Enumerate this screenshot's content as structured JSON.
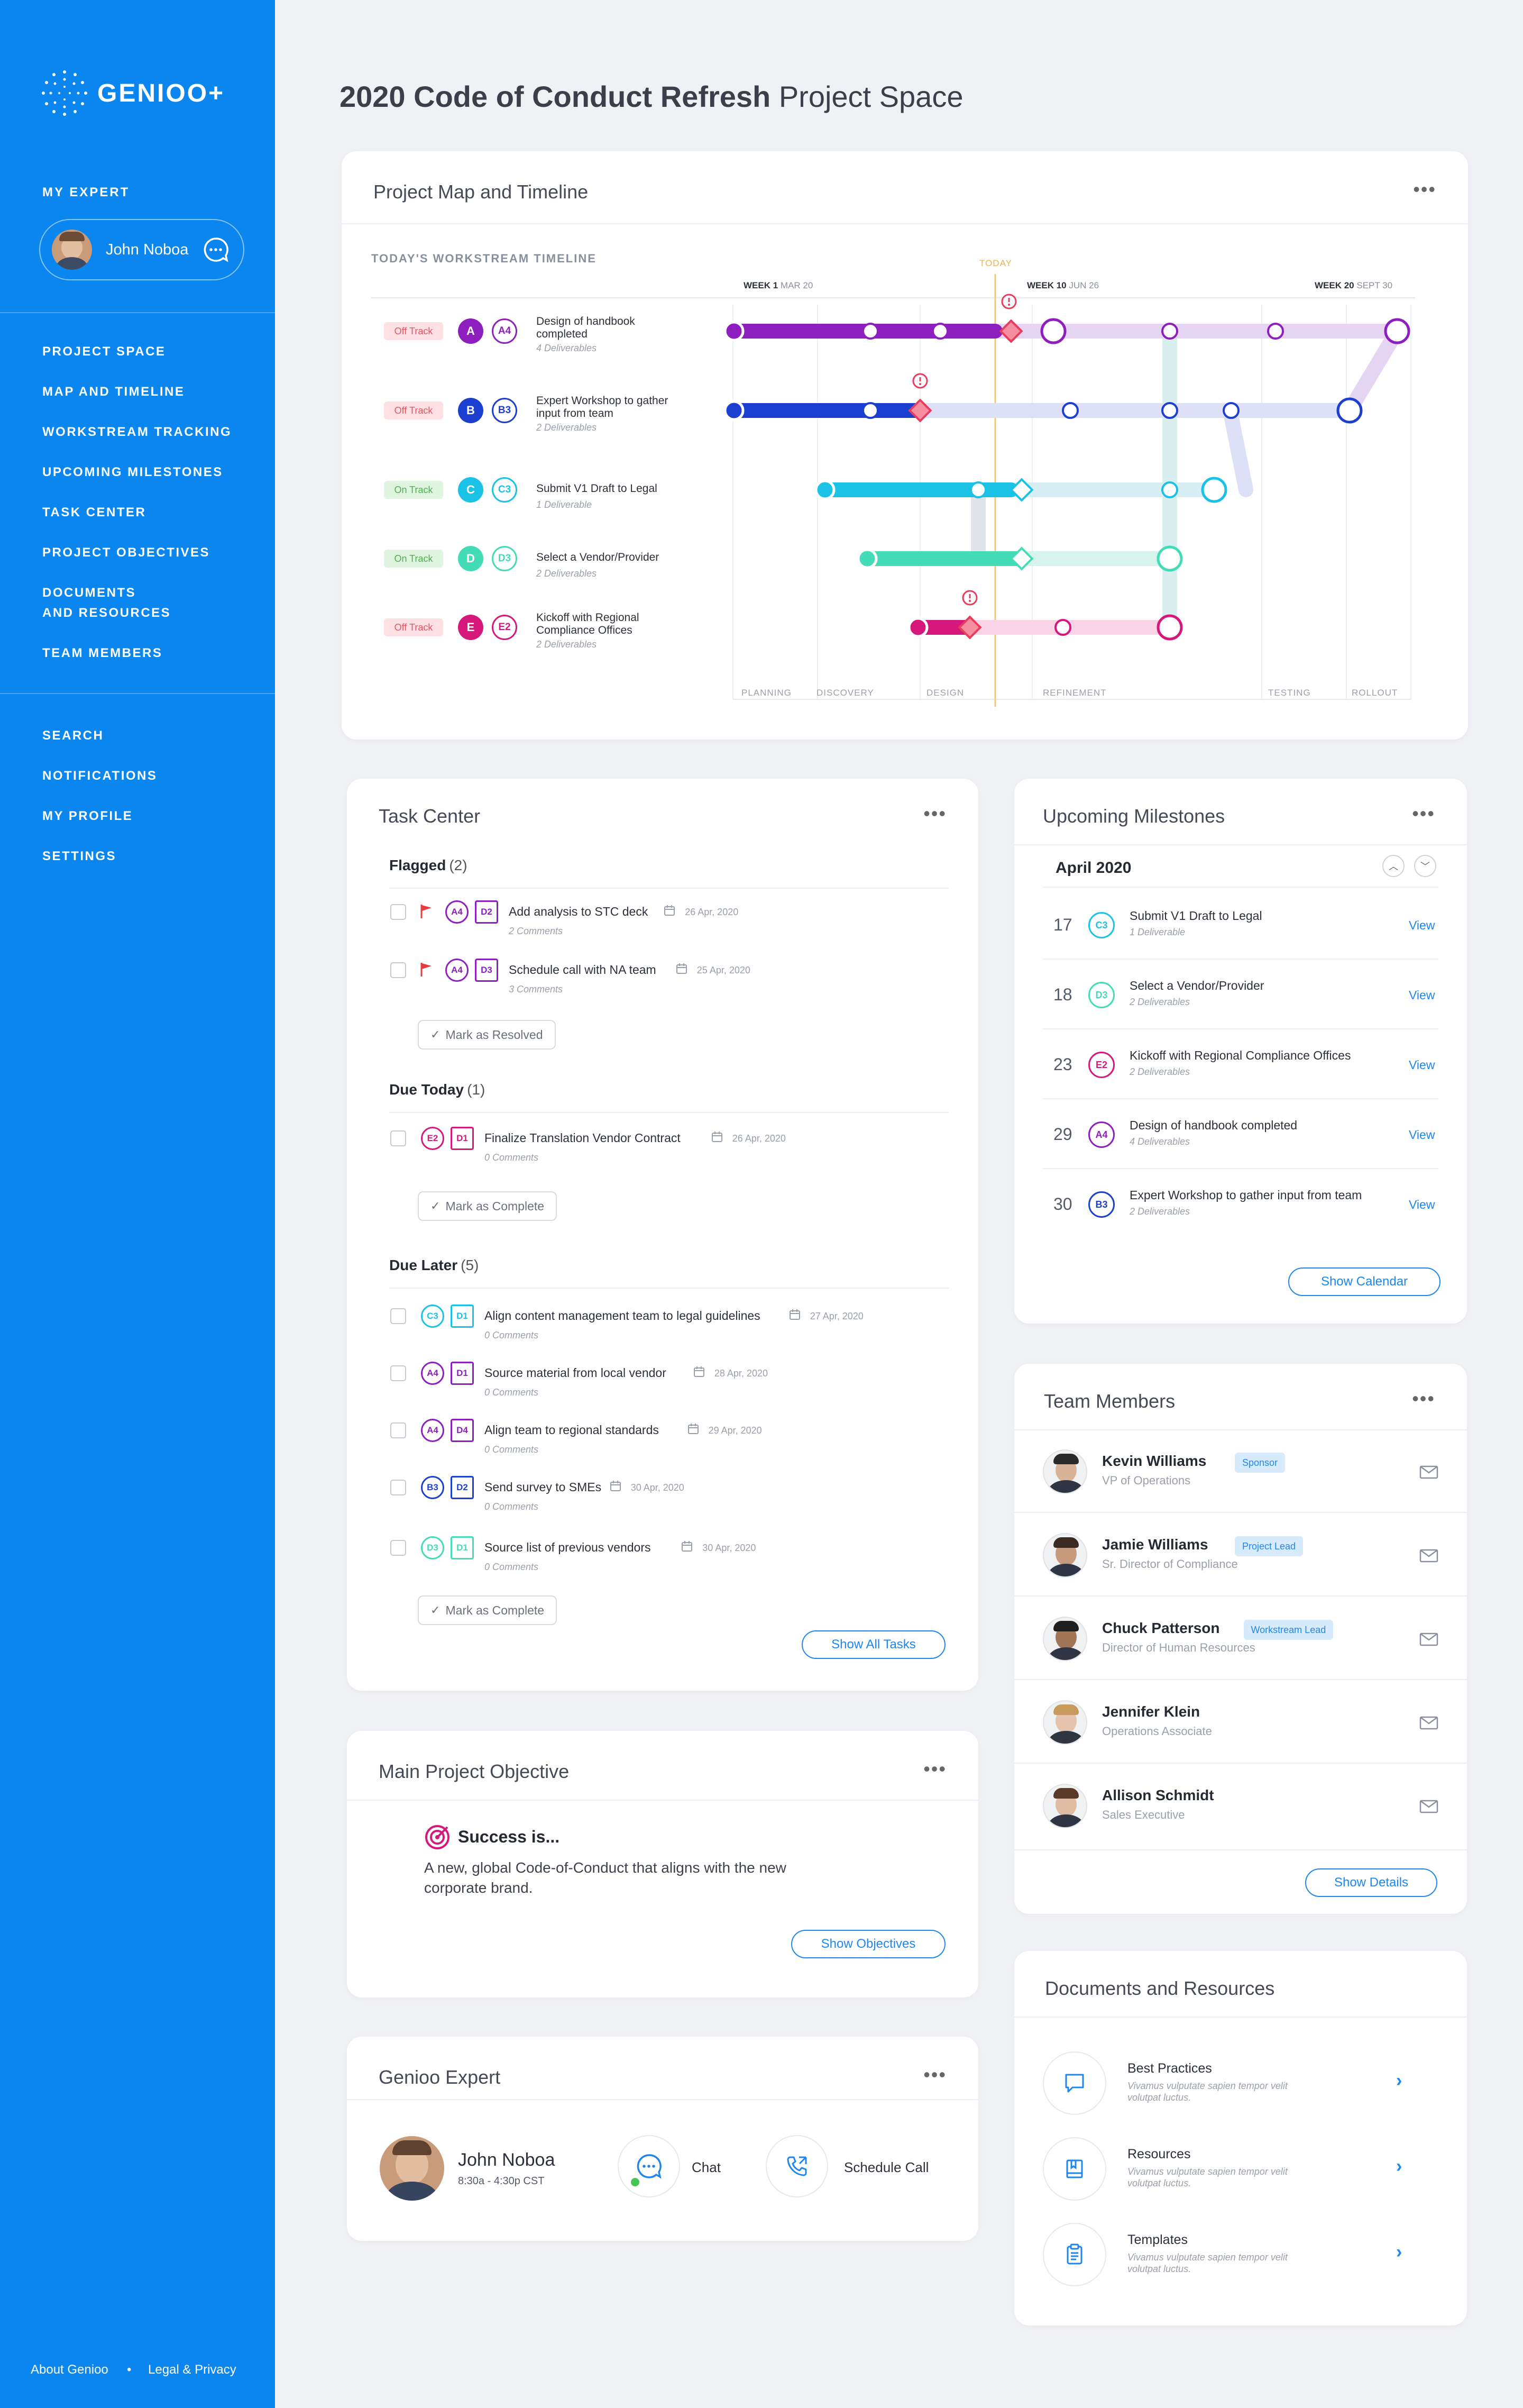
{
  "app": {
    "name": "GENIOO+"
  },
  "sidebar": {
    "my_expert_label": "MY EXPERT",
    "expert_name": "John Noboa",
    "nav": [
      "PROJECT SPACE",
      "MAP AND TIMELINE",
      "WORKSTREAM TRACKING",
      "UPCOMING MILESTONES",
      "TASK CENTER",
      "PROJECT OBJECTIVES",
      "DOCUMENTS\nAND RESOURCES",
      "TEAM MEMBERS"
    ],
    "nav2": [
      "SEARCH",
      "NOTIFICATIONS",
      "MY PROFILE",
      "SETTINGS"
    ],
    "footer": {
      "about": "About Genioo",
      "sep": "•",
      "legal": "Legal & Privacy"
    }
  },
  "header": {
    "title_bold": "2020 Code of Conduct Refresh",
    "title_light": "Project Space"
  },
  "timeline": {
    "title": "Project Map and Timeline",
    "subtitle": "TODAY'S WORKSTREAM TIMELINE",
    "today": "TODAY",
    "weeks": [
      {
        "w": "WEEK 1",
        "d": "MAR 20"
      },
      {
        "w": "WEEK 10",
        "d": "JUN 26"
      },
      {
        "w": "WEEK 20",
        "d": "SEPT 30"
      }
    ],
    "phases": [
      "PLANNING",
      "DISCOVERY",
      "DESIGN",
      "REFINEMENT",
      "TESTING",
      "ROLLOUT"
    ],
    "workstreams": [
      {
        "status": "Off Track",
        "letter": "A",
        "code": "A4",
        "name": "Design of handbook\ncompleted",
        "sub": "4 Deliverables",
        "color": "#8e1fbf"
      },
      {
        "status": "Off Track",
        "letter": "B",
        "code": "B3",
        "name": "Expert Workshop to gather\ninput from team",
        "sub": "2 Deliverables",
        "color": "#1d3fd0"
      },
      {
        "status": "On Track",
        "letter": "C",
        "code": "C3",
        "name": "Submit V1 Draft to Legal",
        "sub": "1 Deliverable",
        "color": "#1cc2e6"
      },
      {
        "status": "On Track",
        "letter": "D",
        "code": "D3",
        "name": "Select a Vendor/Provider",
        "sub": "2 Deliverables",
        "color": "#44dcb6"
      },
      {
        "status": "Off Track",
        "letter": "E",
        "code": "E2",
        "name": "Kickoff with Regional\nCompliance Offices",
        "sub": "2 Deliverables",
        "color": "#d6187c"
      }
    ]
  },
  "tasks": {
    "title": "Task Center",
    "flagged": {
      "label": "Flagged",
      "count": "(2)"
    },
    "due_today": {
      "label": "Due Today",
      "count": "(1)"
    },
    "due_later": {
      "label": "Due Later",
      "count": "(5)"
    },
    "items": [
      {
        "ws": "A4",
        "d": "D2",
        "name": "Add analysis to STC deck",
        "date": "26 Apr, 2020",
        "sub": "2 Comments"
      },
      {
        "ws": "A4",
        "d": "D3",
        "name": "Schedule call with NA team",
        "date": "25 Apr, 2020",
        "sub": "3 Comments"
      },
      {
        "ws": "E2",
        "d": "D1",
        "name": "Finalize Translation Vendor Contract",
        "date": "26 Apr, 2020",
        "sub": "0 Comments"
      },
      {
        "ws": "C3",
        "d": "D1",
        "name": "Align content management team to legal guidelines",
        "date": "27 Apr, 2020",
        "sub": "0 Comments"
      },
      {
        "ws": "A4",
        "d": "D1",
        "name": "Source material from local vendor",
        "date": "28 Apr, 2020",
        "sub": "0 Comments"
      },
      {
        "ws": "A4",
        "d": "D4",
        "name": "Align team to regional standards",
        "date": "29 Apr, 2020",
        "sub": "0 Comments"
      },
      {
        "ws": "B3",
        "d": "D2",
        "name": "Send survey to SMEs",
        "date": "30 Apr, 2020",
        "sub": "0 Comments"
      },
      {
        "ws": "D3",
        "d": "D1",
        "name": "Source list of previous vendors",
        "date": "30 Apr, 2020",
        "sub": "0 Comments"
      }
    ],
    "mark_resolved": "Mark as Resolved",
    "mark_complete": "Mark as Complete",
    "show_all": "Show All Tasks"
  },
  "objective": {
    "title": "Main Project Objective",
    "heading": "Success is...",
    "text": "A new, global Code-of-Conduct that aligns with the new\ncorporate brand.",
    "button": "Show Objectives"
  },
  "expert": {
    "title": "Genioo Expert",
    "name": "John Noboa",
    "hours": "8:30a - 4:30p CST",
    "chat": "Chat",
    "call": "Schedule Call"
  },
  "milestones": {
    "title": "Upcoming Milestones",
    "month": "April 2020",
    "items": [
      {
        "day": "17",
        "code": "C3",
        "name": "Submit V1 Draft to Legal",
        "sub": "1 Deliverable"
      },
      {
        "day": "18",
        "code": "D3",
        "name": "Select a Vendor/Provider",
        "sub": "2 Deliverables"
      },
      {
        "day": "23",
        "code": "E2",
        "name": "Kickoff with Regional Compliance Offices",
        "sub": "2 Deliverables"
      },
      {
        "day": "29",
        "code": "A4",
        "name": "Design of handbook completed",
        "sub": "4 Deliverables"
      },
      {
        "day": "30",
        "code": "B3",
        "name": "Expert Workshop to gather input from team",
        "sub": "2 Deliverables"
      }
    ],
    "view": "View",
    "button": "Show Calendar"
  },
  "team": {
    "title": "Team Members",
    "members": [
      {
        "name": "Kevin Williams",
        "role": "VP of Operations",
        "badge": "Sponsor"
      },
      {
        "name": "Jamie Williams",
        "role": "Sr. Director of Compliance",
        "badge": "Project Lead"
      },
      {
        "name": "Chuck Patterson",
        "role": "Director of Human Resources",
        "badge": "Workstream Lead"
      },
      {
        "name": "Jennifer Klein",
        "role": "Operations Associate",
        "badge": ""
      },
      {
        "name": "Allison Schmidt",
        "role": "Sales Executive",
        "badge": ""
      }
    ],
    "button": "Show Details"
  },
  "docs": {
    "title": "Documents and Resources",
    "items": [
      {
        "name": "Best Practices",
        "desc": "Vivamus vulputate sapien tempor velit\nvolutpat luctus.",
        "icon": "chat-icon"
      },
      {
        "name": "Resources",
        "desc": "Vivamus vulputate sapien tempor velit\nvolutpat luctus.",
        "icon": "book-icon"
      },
      {
        "name": "Templates",
        "desc": "Vivamus vulputate sapien tempor velit\nvolutpat luctus.",
        "icon": "clipboard-icon"
      }
    ]
  }
}
